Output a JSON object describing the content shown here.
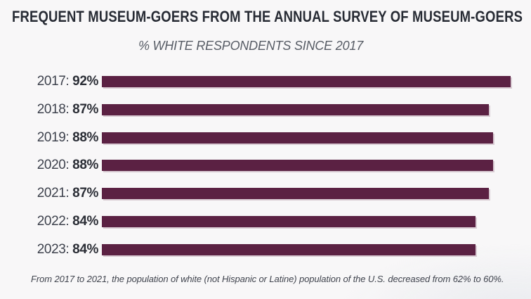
{
  "chart_data": {
    "type": "bar",
    "orientation": "horizontal",
    "title": "FREQUENT MUSEUM-GOERS FROM THE ANNUAL SURVEY OF MUSEUM-GOERS",
    "subtitle": "% WHITE RESPONDENTS SINCE 2017",
    "categories": [
      "2017",
      "2018",
      "2019",
      "2020",
      "2021",
      "2022",
      "2023"
    ],
    "values": [
      92,
      87,
      88,
      88,
      87,
      84,
      84
    ],
    "label_separator": ": ",
    "value_suffix": "%",
    "xlim": [
      0,
      100
    ],
    "grid": false,
    "legend": false,
    "annotation": "From 2017 to 2021, the population of white (not Hispanic or Latine) population of the U.S. decreased from 62% to 60%.",
    "colors": {
      "bar": "#5b2143",
      "background": "#f8f7f8",
      "title_text": "#272b34",
      "subtitle_text": "#575c65",
      "label_text": "#3e424d",
      "value_text": "#2b2e36",
      "footnote_text": "#40444e"
    }
  }
}
